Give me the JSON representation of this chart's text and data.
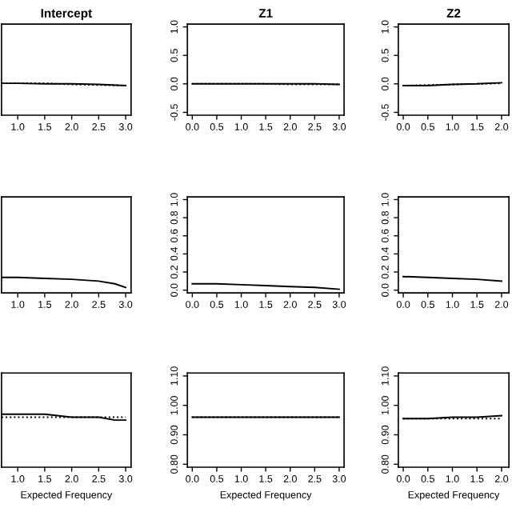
{
  "chart_data": [
    {
      "type": "line",
      "title": "Intercept",
      "x": [
        0.7,
        1.0,
        1.5,
        2.0,
        2.5,
        3.0
      ],
      "xlim": [
        0.7,
        3.1
      ],
      "xticks": [
        {
          "value": 1,
          "label": "1.0"
        },
        1.5,
        {
          "value": 2,
          "label": "2.0"
        },
        2.5,
        {
          "value": 3,
          "label": "3.0"
        }
      ],
      "ylim": [
        -0.55,
        1.05
      ],
      "tick_labels": "x",
      "series": [
        {
          "color": "#000000",
          "line_style": "solid",
          "values": [
            0.01,
            0.01,
            0.0,
            0.0,
            -0.01,
            -0.03
          ]
        },
        {
          "color": "#000000",
          "line_style": "dotted",
          "values": [
            0.01,
            0.01,
            0.01,
            -0.01,
            -0.02,
            -0.03
          ]
        }
      ]
    },
    {
      "type": "line",
      "title": "Z1",
      "x": [
        0.0,
        0.5,
        1.0,
        1.5,
        2.0,
        2.5,
        3.0
      ],
      "xlim": [
        -0.1,
        3.1
      ],
      "xticks": [
        {
          "value": 0,
          "label": "0.0"
        },
        0.5,
        {
          "value": 1,
          "label": "1.0"
        },
        1.5,
        {
          "value": 2,
          "label": "2.0"
        },
        2.5,
        {
          "value": 3,
          "label": "3.0"
        }
      ],
      "ylim": [
        -0.55,
        1.05
      ],
      "yticks": [
        -0.5,
        {
          "value": 0,
          "label": "0.0"
        },
        0.5,
        {
          "value": 1,
          "label": "1.0"
        }
      ],
      "series": [
        {
          "color": "#000000",
          "line_style": "solid",
          "values": [
            0.0,
            0.0,
            0.0,
            0.0,
            0.0,
            0.0,
            -0.01
          ]
        },
        {
          "color": "#000000",
          "line_style": "dotted",
          "values": [
            0.0,
            0.0,
            0.0,
            0.0,
            -0.01,
            -0.01,
            -0.01
          ]
        }
      ]
    },
    {
      "type": "line",
      "title": "Z2",
      "x": [
        0.0,
        0.5,
        1.0,
        1.5,
        2.0
      ],
      "xlim": [
        -0.1,
        2.15
      ],
      "xticks": [
        {
          "value": 0,
          "label": "0.0"
        },
        0.5,
        {
          "value": 1,
          "label": "1.0"
        },
        1.5,
        {
          "value": 2,
          "label": "2.0"
        }
      ],
      "ylim": [
        -0.55,
        1.05
      ],
      "yticks": [
        -0.5,
        {
          "value": 0,
          "label": "0.0"
        },
        0.5,
        {
          "value": 1,
          "label": "1.0"
        }
      ],
      "series": [
        {
          "color": "#000000",
          "line_style": "solid",
          "values": [
            -0.03,
            -0.03,
            -0.01,
            0.0,
            0.02
          ]
        },
        {
          "color": "#000000",
          "line_style": "dotted",
          "values": [
            -0.03,
            -0.02,
            -0.01,
            0.0,
            0.01
          ]
        }
      ]
    },
    {
      "type": "line",
      "x": [
        0.7,
        1.0,
        1.5,
        2.0,
        2.5,
        2.8,
        3.0
      ],
      "xlim": [
        0.7,
        3.1
      ],
      "xticks": [
        {
          "value": 1,
          "label": "1.0"
        },
        1.5,
        {
          "value": 2,
          "label": "2.0"
        },
        2.5,
        {
          "value": 3,
          "label": "3.0"
        }
      ],
      "ylim": [
        -0.03,
        1.03
      ],
      "tick_labels": "x",
      "series": [
        {
          "color": "#000000",
          "line_style": "solid",
          "values": [
            0.14,
            0.14,
            0.13,
            0.12,
            0.1,
            0.07,
            0.03
          ]
        }
      ]
    },
    {
      "type": "line",
      "x": [
        0.0,
        0.5,
        1.0,
        1.5,
        2.0,
        2.5,
        3.0
      ],
      "xlim": [
        -0.1,
        3.1
      ],
      "xticks": [
        {
          "value": 0,
          "label": "0.0"
        },
        0.5,
        {
          "value": 1,
          "label": "1.0"
        },
        1.5,
        {
          "value": 2,
          "label": "2.0"
        },
        2.5,
        {
          "value": 3,
          "label": "3.0"
        }
      ],
      "ylim": [
        -0.03,
        1.03
      ],
      "yticks": [
        {
          "value": 0,
          "label": "0.0"
        },
        0.2,
        0.4,
        0.6,
        0.8,
        {
          "value": 1,
          "label": "1.0"
        }
      ],
      "series": [
        {
          "color": "#000000",
          "line_style": "solid",
          "values": [
            0.07,
            0.07,
            0.06,
            0.05,
            0.04,
            0.03,
            0.01
          ]
        }
      ]
    },
    {
      "type": "line",
      "x": [
        0.0,
        0.5,
        1.0,
        1.5,
        2.0
      ],
      "xlim": [
        -0.1,
        2.15
      ],
      "xticks": [
        {
          "value": 0,
          "label": "0.0"
        },
        0.5,
        {
          "value": 1,
          "label": "1.0"
        },
        1.5,
        {
          "value": 2,
          "label": "2.0"
        }
      ],
      "ylim": [
        -0.03,
        1.03
      ],
      "yticks": [
        {
          "value": 0,
          "label": "0.0"
        },
        0.2,
        0.4,
        0.6,
        0.8,
        {
          "value": 1,
          "label": "1.0"
        }
      ],
      "series": [
        {
          "color": "#000000",
          "line_style": "solid",
          "values": [
            0.15,
            0.14,
            0.13,
            0.12,
            0.1
          ]
        }
      ]
    },
    {
      "type": "line",
      "xlabel": "Expected Frequency",
      "x": [
        0.7,
        1.0,
        1.5,
        2.0,
        2.5,
        2.8,
        3.0
      ],
      "xlim": [
        0.7,
        3.1
      ],
      "xticks": [
        {
          "value": 1,
          "label": "1.0"
        },
        1.5,
        {
          "value": 2,
          "label": "2.0"
        },
        2.5,
        {
          "value": 3,
          "label": "3.0"
        }
      ],
      "ylim": [
        0.79,
        1.11
      ],
      "tick_labels": "x",
      "series": [
        {
          "color": "#000000",
          "line_style": "solid",
          "values": [
            0.97,
            0.97,
            0.97,
            0.96,
            0.96,
            0.95,
            0.95
          ]
        },
        {
          "color": "#000000",
          "line_style": "dotted",
          "values": [
            0.96,
            0.96,
            0.96,
            0.96,
            0.96,
            0.96,
            0.96
          ]
        }
      ]
    },
    {
      "type": "line",
      "xlabel": "Expected Frequency",
      "x": [
        0.0,
        0.5,
        1.0,
        1.5,
        2.0,
        2.5,
        3.0
      ],
      "xlim": [
        -0.1,
        3.1
      ],
      "xticks": [
        {
          "value": 0,
          "label": "0.0"
        },
        0.5,
        {
          "value": 1,
          "label": "1.0"
        },
        1.5,
        {
          "value": 2,
          "label": "2.0"
        },
        2.5,
        {
          "value": 3,
          "label": "3.0"
        }
      ],
      "ylim": [
        0.79,
        1.11
      ],
      "yticks": [
        {
          "value": 0.8,
          "label": "0.80"
        },
        {
          "value": 0.9,
          "label": "0.90"
        },
        {
          "value": 1.0,
          "label": "1.00"
        },
        {
          "value": 1.1,
          "label": "1.10"
        }
      ],
      "series": [
        {
          "color": "#000000",
          "line_style": "solid",
          "values": [
            0.96,
            0.96,
            0.96,
            0.96,
            0.96,
            0.96,
            0.96
          ]
        },
        {
          "color": "#000000",
          "line_style": "dotted",
          "values": [
            0.96,
            0.96,
            0.96,
            0.96,
            0.96,
            0.96,
            0.96
          ]
        }
      ]
    },
    {
      "type": "line",
      "xlabel": "Expected Frequency",
      "x": [
        0.0,
        0.5,
        1.0,
        1.5,
        2.0
      ],
      "xlim": [
        -0.1,
        2.15
      ],
      "xticks": [
        {
          "value": 0,
          "label": "0.0"
        },
        0.5,
        {
          "value": 1,
          "label": "1.0"
        },
        1.5,
        {
          "value": 2,
          "label": "2.0"
        }
      ],
      "ylim": [
        0.79,
        1.11
      ],
      "yticks": [
        {
          "value": 0.8,
          "label": "0.80"
        },
        {
          "value": 0.9,
          "label": "0.90"
        },
        {
          "value": 1.0,
          "label": "1.00"
        },
        {
          "value": 1.1,
          "label": "1.10"
        }
      ],
      "series": [
        {
          "color": "#000000",
          "line_style": "solid",
          "values": [
            0.955,
            0.955,
            0.96,
            0.96,
            0.965
          ]
        },
        {
          "color": "#000000",
          "line_style": "dotted",
          "values": [
            0.955,
            0.955,
            0.955,
            0.955,
            0.955
          ]
        }
      ]
    }
  ]
}
